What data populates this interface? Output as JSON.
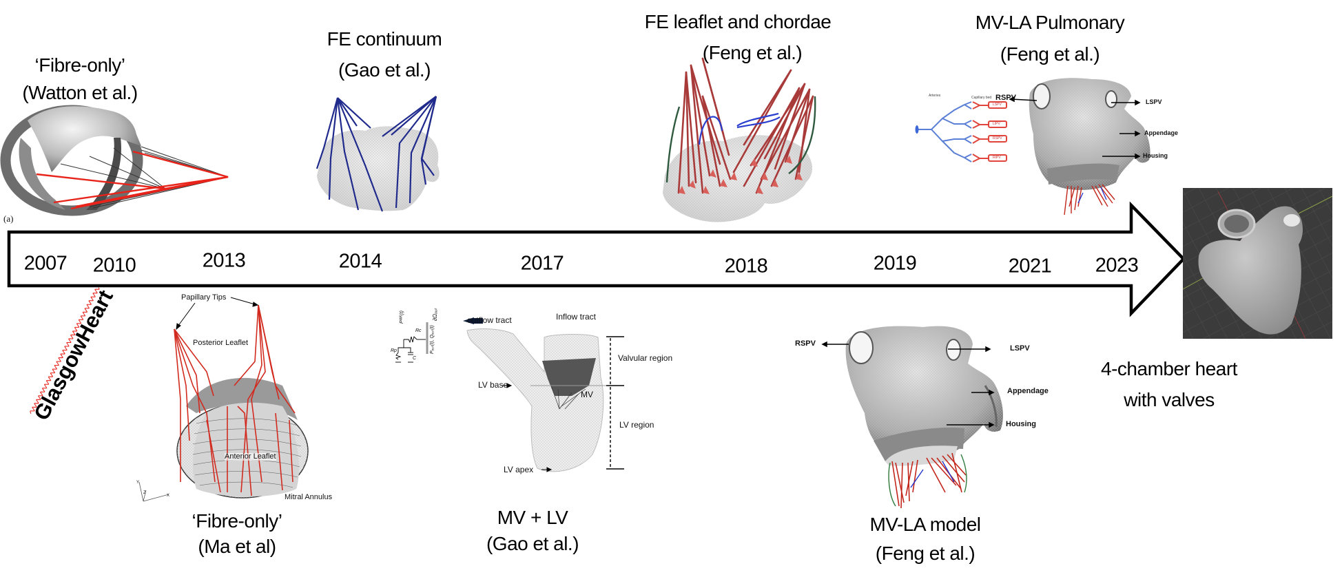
{
  "timeline": {
    "years": [
      "2007",
      "2010",
      "2013",
      "2014",
      "2017",
      "2018",
      "2019",
      "2021",
      "2023"
    ],
    "arrow_color": "#000000"
  },
  "milestones": {
    "watton": {
      "title": "‘Fibre-only’",
      "author": "(Watton et al.)",
      "panel_label": "(a)"
    },
    "gao_continuum": {
      "title": "FE continuum",
      "author": "(Gao et al.)"
    },
    "feng_leaflet": {
      "title": "FE leaflet and chordae",
      "author": "(Feng et al.)"
    },
    "feng_pulmonary": {
      "title": "MV-LA Pulmonary",
      "author": "(Feng et al.)",
      "labels": {
        "rspv": "RSPV",
        "lspv": "LSPV",
        "appendage": "Appendage",
        "housing": "Housing"
      },
      "network": {
        "arteries": "Arteries",
        "capillary_bed": "Capillary bed",
        "boxes": [
          "LSPV",
          "LIPV",
          "RSPV",
          "RIPV"
        ]
      }
    },
    "four_chamber": {
      "title": "4-chamber heart",
      "subtitle": "with valves"
    },
    "glasgowheart": {
      "label": "GlasgowHeart"
    },
    "ma": {
      "title": "‘Fibre-only’",
      "author": "(Ma et al)",
      "labels": {
        "papillary_tips": "Papillary Tips",
        "posterior": "Posterior Leaflet",
        "anterior": "Anterior Leaflet",
        "annulus": "Mitral Annulus",
        "axis_x": "X",
        "axis_y": "Y",
        "axis_z": "Z"
      }
    },
    "gao_mvlv": {
      "title": "MV + LV",
      "author": "(Gao et al.)",
      "labels": {
        "outflow": "outflow tract",
        "inflow": "Inflow tract",
        "valvular": "Valvular region",
        "lv_base": "LV base",
        "mv": "MV",
        "lv_region": "LV region",
        "lv_apex": "LV apex",
        "rc": "Rc",
        "rp": "Rp",
        "c": "C",
        "pwk": "Pᵂᴷ(t)",
        "pout": "Pₒᵤₜ(t), Qₒᵤₜ(t)",
        "domega": "∂Ωₒᵤₜ"
      }
    },
    "feng_mvla": {
      "title": "MV-LA model",
      "author": "(Feng et al.)",
      "labels": {
        "rspv": "RSPV",
        "lspv": "LSPV",
        "appendage": "Appendage",
        "housing": "Housing"
      }
    }
  },
  "colors": {
    "chord_red": "#c0392b",
    "fibre_red": "#e8231a",
    "chord_blue": "#1f2a8c",
    "mesh_gray": "#d9d9d9",
    "viewport_bg": "#3b3b3b"
  }
}
